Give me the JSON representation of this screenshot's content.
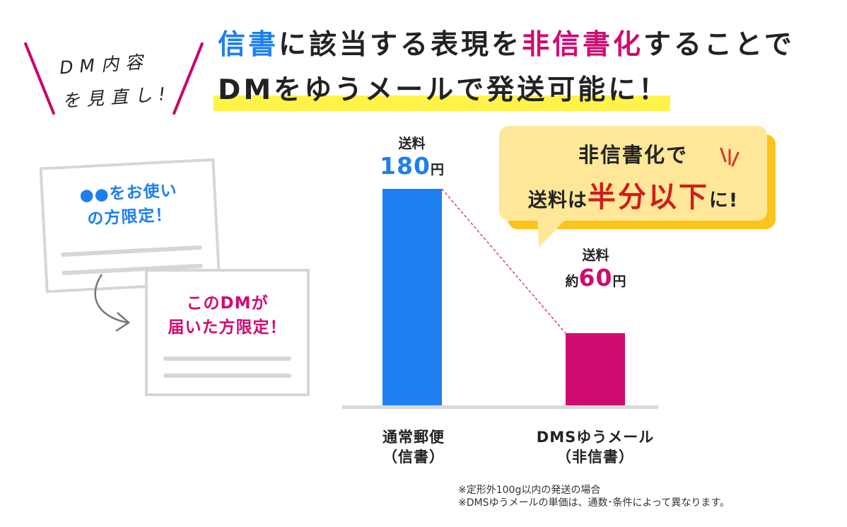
{
  "header": {
    "tag_line1": "DM内容",
    "tag_line2": "を見直し!",
    "headline1": {
      "part1": "信書",
      "part2": "に該当する表現を",
      "part3": "非信書化",
      "part4": "することで"
    },
    "headline2": "DMをゆうメールで発送可能に！"
  },
  "cards": {
    "card1_line1": "●●をお使い",
    "card1_line2": "の方限定！",
    "card2_line1": "このDMが",
    "card2_line2": "届いた方限定！"
  },
  "bubble": {
    "line1": "非信書化で",
    "line2_a": "送料は",
    "line2_b": "半分以下",
    "line2_c": "に!"
  },
  "colors": {
    "blue": "#1d7ff0",
    "pink": "#cf0b72",
    "yellow_highlight": "#fff34a",
    "bubble_fill": "#ffe79a",
    "bubble_shadow": "#fbc41c",
    "red": "#d01c1c"
  },
  "chart_data": {
    "type": "bar",
    "categories": [
      "通常郵便（信書）",
      "DMSゆうメール（非信書）"
    ],
    "category_lines": [
      [
        "通常郵便",
        "（信書）"
      ],
      [
        "DMSゆうメール",
        "（非信書）"
      ]
    ],
    "values": [
      180,
      60
    ],
    "value_caption": "送料",
    "value_prefix": [
      "",
      "約"
    ],
    "value_unit": "円",
    "bar_colors": [
      "#1d7ff0",
      "#cf0b72"
    ],
    "title": "",
    "xlabel": "",
    "ylabel": "",
    "ylim": [
      0,
      180
    ],
    "grid": false,
    "connector": "dashed line between bar tops"
  },
  "footnotes": [
    "※定形外100g以内の発送の場合",
    "※DMSゆうメールの単価は、通数･条件によって異なります。"
  ]
}
